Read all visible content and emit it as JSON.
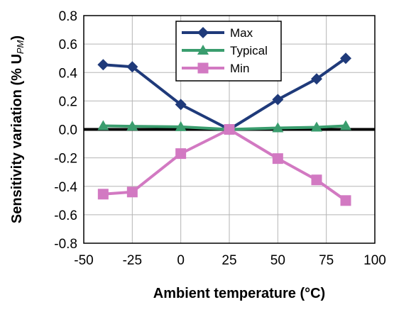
{
  "chart_data": {
    "type": "line",
    "xlabel": "Ambient temperature (°C)",
    "ylabel": "Sensitivity variation (% U",
    "ylabel_subscript": "PM",
    "ylabel_close": ")",
    "x": [
      -40,
      -25,
      0,
      25,
      50,
      70,
      85
    ],
    "xlim": [
      -50,
      100
    ],
    "ylim": [
      -0.8,
      0.8
    ],
    "x_ticks": [
      -50,
      -25,
      0,
      25,
      50,
      75,
      100
    ],
    "y_ticks": [
      0.8,
      0.6,
      0.4,
      0.2,
      0.0,
      -0.2,
      -0.4,
      -0.6,
      -0.8
    ],
    "x_tick_labels": [
      "-50",
      "-25",
      "0",
      "25",
      "50",
      "75",
      "100"
    ],
    "y_tick_labels": [
      "0.8",
      "0.6",
      "0.4",
      "0.2",
      "0.0",
      "-0.2",
      "-0.4",
      "-0.6",
      "-0.8"
    ],
    "grid": true,
    "legend_position": "top-center",
    "series": [
      {
        "name": "Max",
        "color": "#1f3a7a",
        "marker": "diamond",
        "values": [
          0.455,
          0.44,
          0.175,
          0.0,
          0.21,
          0.355,
          0.5
        ]
      },
      {
        "name": "Typical",
        "color": "#3a9d6e",
        "marker": "triangle",
        "values": [
          0.025,
          0.022,
          0.018,
          0.0,
          0.01,
          0.015,
          0.025
        ]
      },
      {
        "name": "Min",
        "color": "#d279c2",
        "marker": "square",
        "values": [
          -0.455,
          -0.44,
          -0.17,
          0.0,
          -0.205,
          -0.355,
          -0.5
        ]
      }
    ]
  }
}
